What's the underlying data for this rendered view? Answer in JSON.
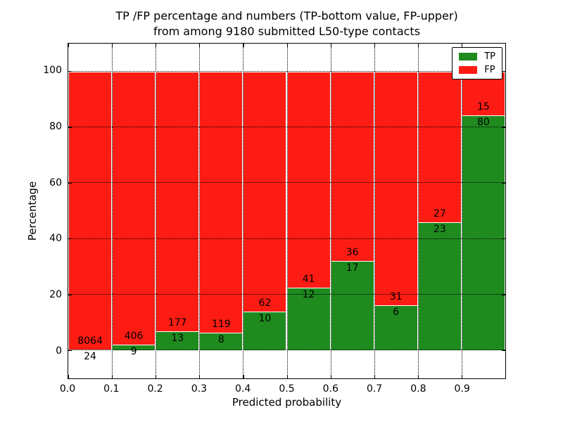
{
  "title": {
    "line1": "TP /FP percentage and numbers (TP-bottom value, FP-upper)",
    "line2": "from among 9180 submitted L50-type contacts"
  },
  "axes": {
    "xlabel": "Predicted probability",
    "ylabel": "Percentage",
    "xticks": [
      "0.0",
      "0.1",
      "0.2",
      "0.3",
      "0.4",
      "0.5",
      "0.6",
      "0.7",
      "0.8",
      "0.9"
    ],
    "yticks": [
      "0",
      "20",
      "40",
      "60",
      "80",
      "100"
    ]
  },
  "legend": {
    "items": [
      {
        "label": "TP",
        "color": "#1f8b1f"
      },
      {
        "label": "FP",
        "color": "#fd1c13"
      }
    ]
  },
  "chart_data": {
    "type": "bar",
    "stacked": true,
    "title": "TP /FP percentage and numbers (TP-bottom value, FP-upper) from among 9180 submitted L50-type contacts",
    "xlabel": "Predicted probability",
    "ylabel": "Percentage",
    "total_submitted": 9180,
    "bin_left_edges": [
      0.0,
      0.1,
      0.2,
      0.3,
      0.4,
      0.5,
      0.6,
      0.7,
      0.8,
      0.9
    ],
    "bin_width": 0.1,
    "series": [
      {
        "name": "TP",
        "color": "#1f8b1f",
        "counts": [
          24,
          9,
          13,
          8,
          10,
          12,
          17,
          6,
          23,
          80
        ]
      },
      {
        "name": "FP",
        "color": "#fd1c13",
        "counts": [
          8064,
          406,
          177,
          119,
          62,
          41,
          36,
          31,
          27,
          15
        ]
      }
    ],
    "tp_percent": [
      0.3,
      2.2,
      6.8,
      6.3,
      13.9,
      22.6,
      32.1,
      16.2,
      46.0,
      84.2
    ],
    "ylim": [
      -10,
      110
    ],
    "xlim": [
      0.0,
      1.0
    ],
    "grid": "dotted",
    "legend_position": "upper right"
  }
}
